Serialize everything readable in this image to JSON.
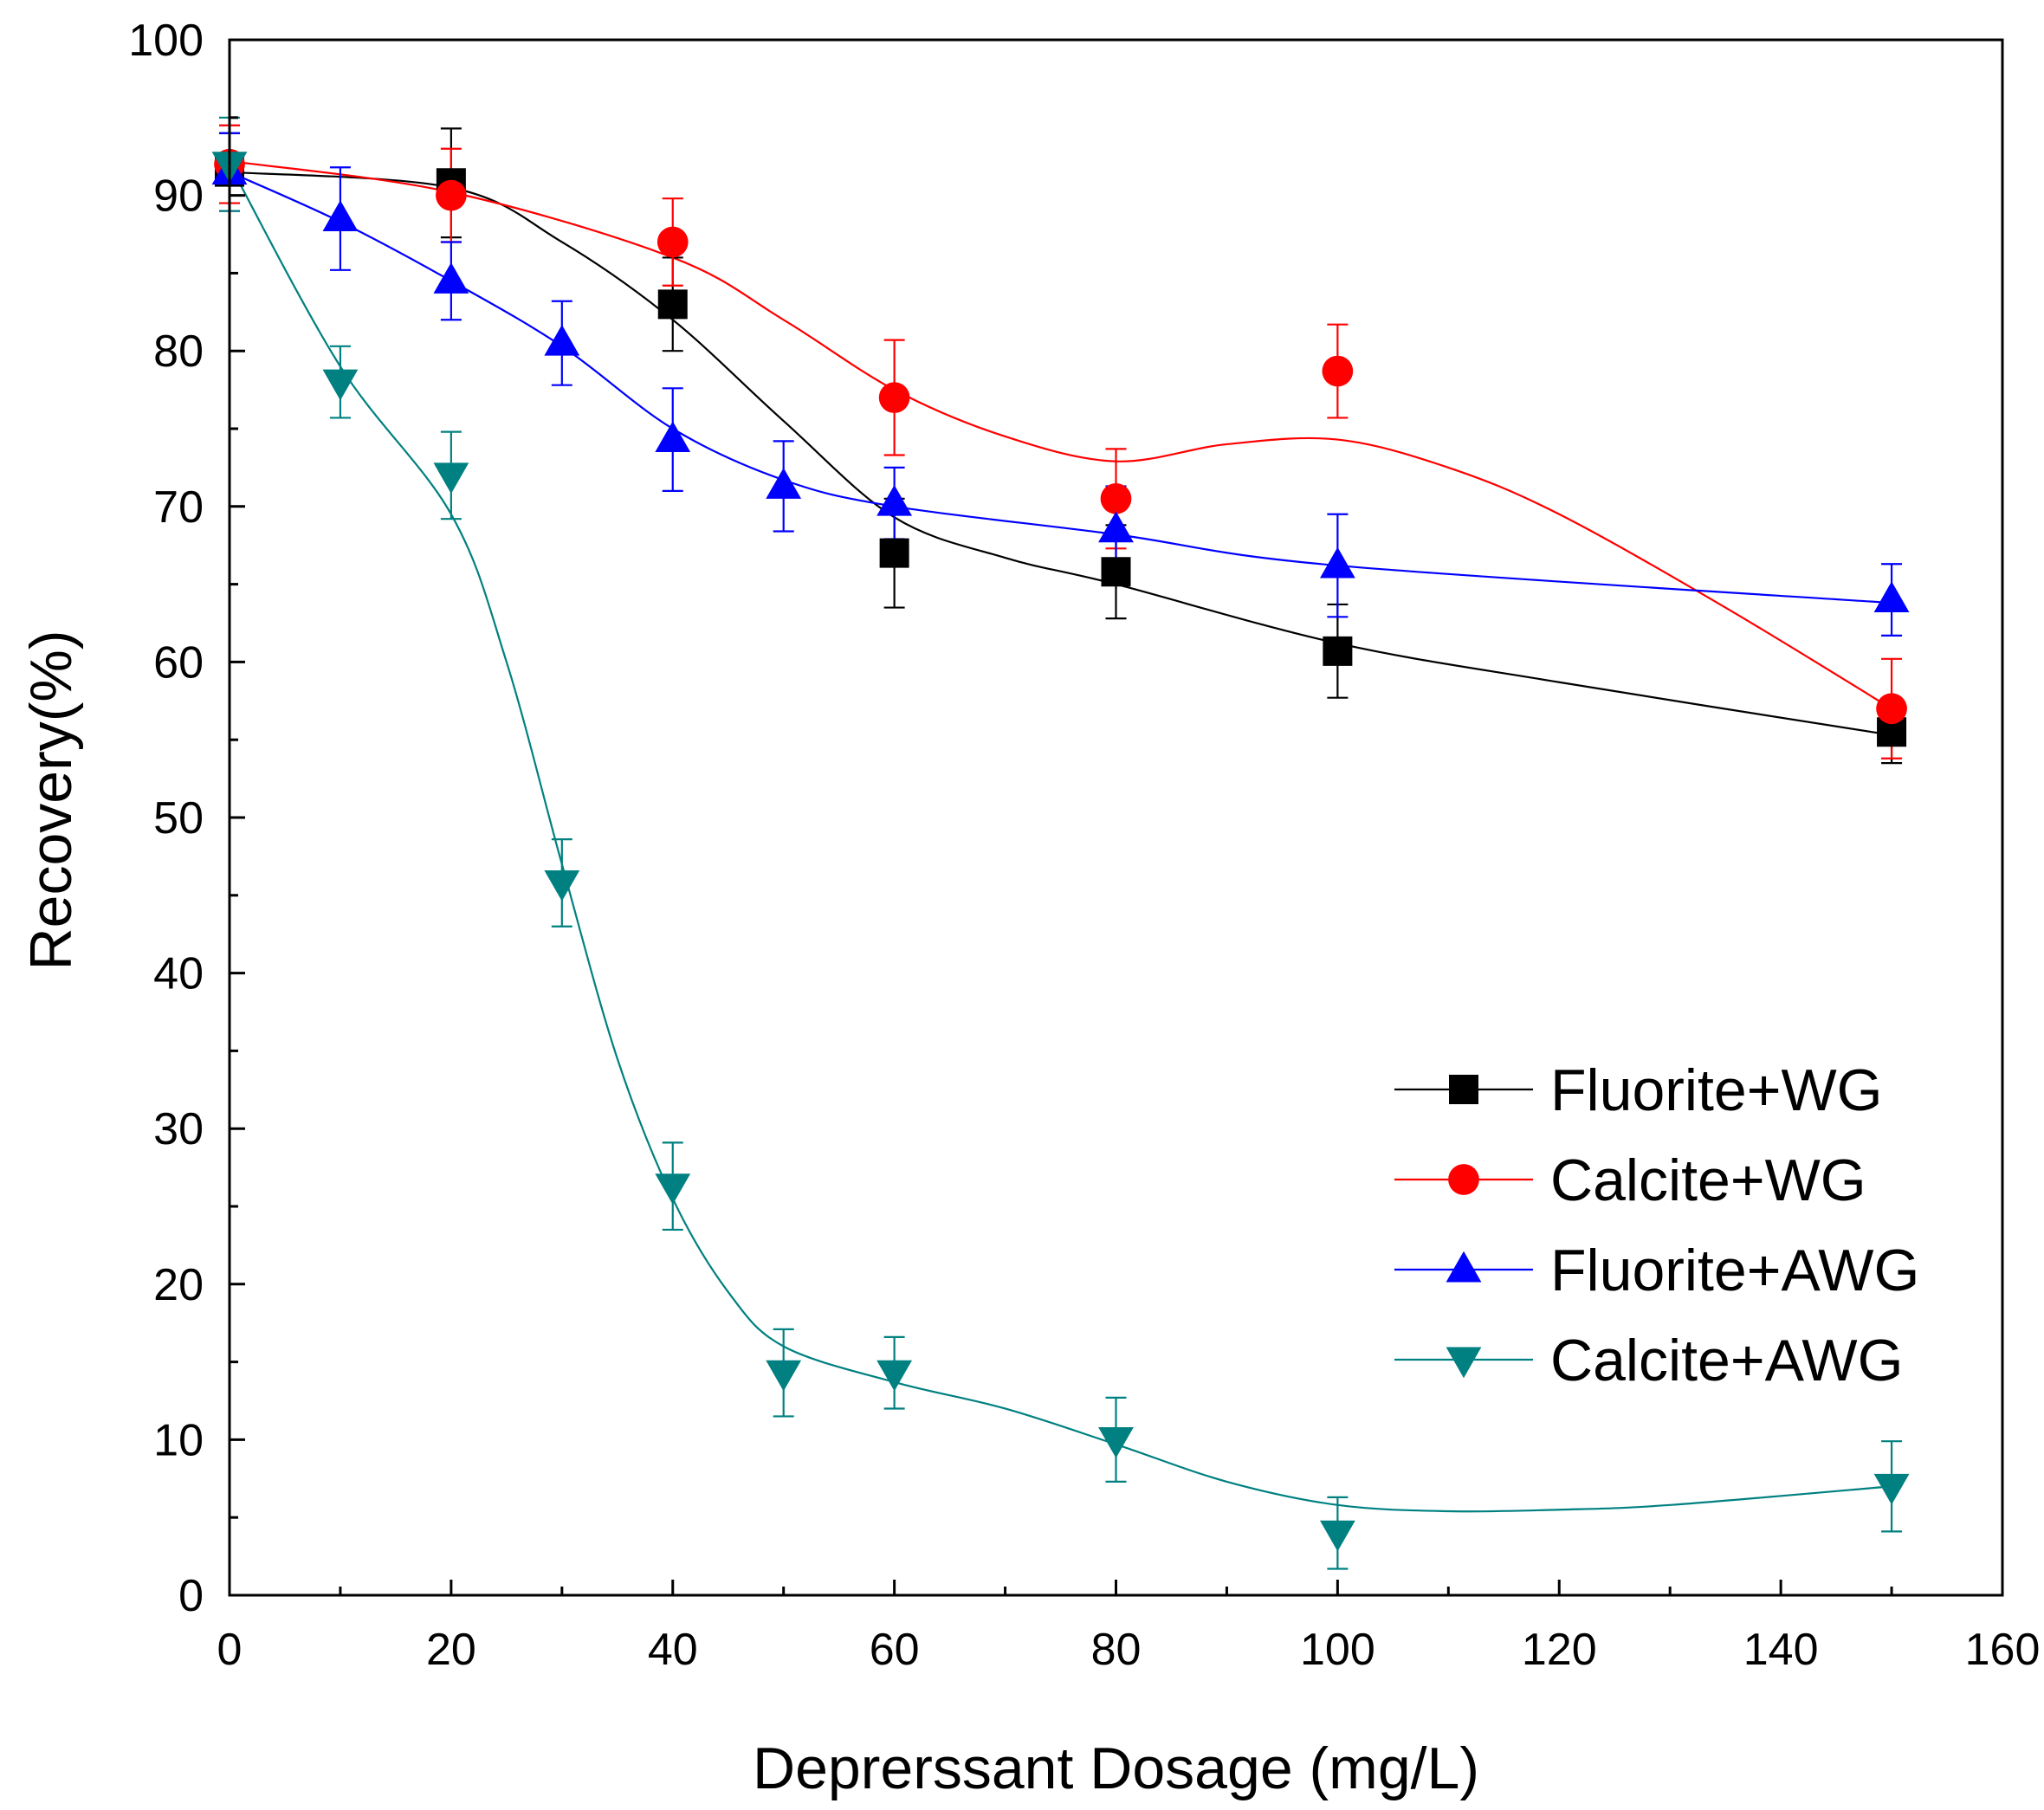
{
  "chart_data": {
    "type": "line",
    "title": "",
    "xlabel": "Deprerssant Dosage (mg/L)",
    "ylabel": "Recovery(%)",
    "xlim": [
      0,
      160
    ],
    "ylim": [
      0,
      100
    ],
    "x_ticks": [
      0,
      20,
      40,
      60,
      80,
      100,
      120,
      140,
      160
    ],
    "y_ticks": [
      0,
      10,
      20,
      30,
      40,
      50,
      60,
      70,
      80,
      90,
      100
    ],
    "grid": false,
    "legend_position": "bottom-right",
    "series": [
      {
        "name": "Fluorite+WG",
        "color": "#000000",
        "marker": "square",
        "x": [
          0,
          20,
          40,
          60,
          80,
          100,
          150
        ],
        "y": [
          91.5,
          90.8,
          83.0,
          67.0,
          65.8,
          60.7,
          55.5
        ],
        "err": [
          2.5,
          3.5,
          3.0,
          3.5,
          3.0,
          3.0,
          2.0
        ]
      },
      {
        "name": "Calcite+WG",
        "color": "#ff0000",
        "marker": "circle",
        "x": [
          0,
          20,
          40,
          60,
          80,
          100,
          150
        ],
        "y": [
          92.0,
          90.0,
          87.0,
          77.0,
          70.5,
          78.7,
          57.0
        ],
        "err": [
          2.5,
          3.0,
          2.8,
          3.7,
          3.2,
          3.0,
          3.2
        ]
      },
      {
        "name": "Fluorite+AWG",
        "color": "#0000ff",
        "marker": "triangle-up",
        "x": [
          0,
          10,
          20,
          30,
          40,
          50,
          60,
          80,
          100,
          150
        ],
        "y": [
          91.5,
          88.5,
          84.5,
          80.5,
          74.3,
          71.3,
          70.2,
          68.5,
          66.2,
          64.0
        ],
        "err": [
          2.5,
          3.3,
          2.5,
          2.7,
          3.3,
          2.9,
          2.3,
          2.8,
          3.3,
          2.3
        ]
      },
      {
        "name": "Calcite+AWG",
        "color": "#008080",
        "marker": "triangle-down",
        "x": [
          0,
          10,
          20,
          30,
          40,
          50,
          60,
          80,
          100,
          150
        ],
        "y": [
          92.0,
          78.0,
          72.0,
          45.8,
          26.3,
          14.3,
          14.3,
          10.0,
          4.0,
          7.0
        ],
        "err": [
          3.0,
          2.3,
          2.8,
          2.8,
          2.8,
          2.8,
          2.3,
          2.7,
          2.3,
          2.9
        ]
      }
    ],
    "fit_curves": [
      {
        "name": "Fluorite+WG",
        "x": [
          0,
          20,
          30,
          40,
          50,
          60,
          70,
          80,
          100,
          120,
          150
        ],
        "y": [
          91.5,
          90.5,
          87.0,
          82.0,
          75.5,
          69.3,
          66.7,
          65.0,
          61.2,
          58.7,
          55.3
        ]
      },
      {
        "name": "Calcite+WG",
        "x": [
          0,
          20,
          40,
          50,
          60,
          70,
          80,
          90,
          100,
          110,
          120,
          135,
          150
        ],
        "y": [
          92.2,
          90.2,
          86.0,
          82.0,
          77.5,
          74.5,
          72.9,
          74.0,
          74.3,
          72.5,
          69.5,
          63.5,
          57.0
        ]
      },
      {
        "name": "Fluorite+AWG",
        "x": [
          0,
          10,
          20,
          30,
          40,
          50,
          60,
          80,
          100,
          150
        ],
        "y": [
          91.5,
          88.3,
          84.5,
          80.3,
          75.0,
          71.7,
          70.0,
          68.2,
          66.2,
          63.8
        ]
      },
      {
        "name": "Calcite+AWG",
        "x": [
          0,
          10,
          20,
          25,
          30,
          35,
          40,
          45,
          50,
          60,
          70,
          80,
          90,
          100,
          110,
          120,
          130,
          150
        ],
        "y": [
          92.0,
          79.0,
          69.5,
          60.0,
          47.0,
          34.5,
          25.5,
          19.5,
          16.0,
          13.7,
          12.0,
          9.7,
          7.3,
          5.8,
          5.4,
          5.5,
          5.8,
          7.0
        ]
      }
    ]
  }
}
